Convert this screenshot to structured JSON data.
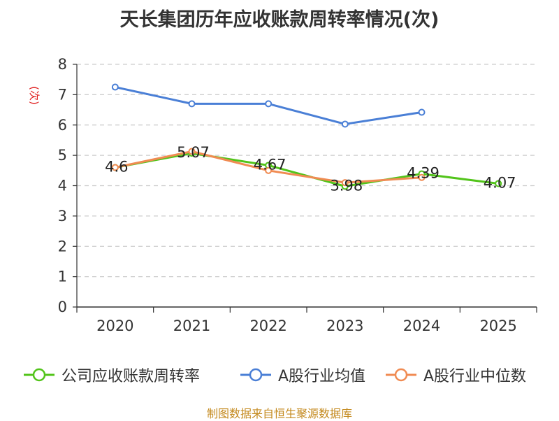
{
  "chart_data": {
    "type": "line",
    "title": "天长集团历年应收账款周转率情况(次)",
    "ylabel": "(次)",
    "xlabel": "",
    "categories": [
      "2020",
      "2021",
      "2022",
      "2023",
      "2024",
      "2025"
    ],
    "ylim": [
      0,
      8
    ],
    "yticks": [
      "0",
      "1",
      "2",
      "3",
      "4",
      "5",
      "6",
      "7",
      "8"
    ],
    "grid": true,
    "legend_position": "bottom",
    "series": [
      {
        "name": "公司应收账款周转率",
        "color": "#52c41a",
        "values": [
          4.6,
          5.07,
          4.67,
          3.98,
          4.39,
          4.07
        ],
        "labels": [
          "4.6",
          "5.07",
          "4.67",
          "3.98",
          "4.39",
          "4.07"
        ]
      },
      {
        "name": "A股行业均值",
        "color": "#4a7fd6",
        "values": [
          7.25,
          6.7,
          6.7,
          6.03,
          6.42,
          null
        ]
      },
      {
        "name": "A股行业中位数",
        "color": "#f08b52",
        "values": [
          4.6,
          5.13,
          4.5,
          4.1,
          4.27,
          null
        ]
      }
    ]
  },
  "source": "制图数据来自恒生聚源数据库"
}
